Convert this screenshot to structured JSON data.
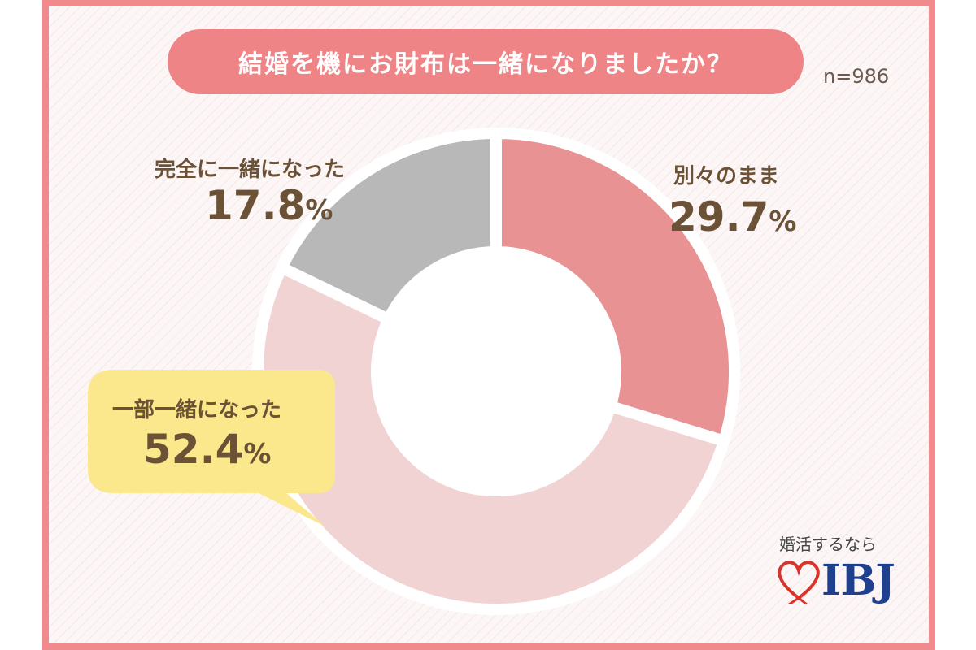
{
  "title": "結婚を機にお財布は一緒になりましたか？",
  "sample_size": "n=986",
  "brand": {
    "tagline": "婚活するなら",
    "name": "IBJ"
  },
  "colors": {
    "separate": "#e89294",
    "partial": "#f2d3d4",
    "full": "#b8b8b8",
    "title_bg": "#ef8487",
    "frame": "#f08a8c",
    "callout": "#fbe88c",
    "label_text": "#6b5237",
    "brand_blue": "#1f3f8f",
    "brand_red": "#d9342b"
  },
  "chart_data": {
    "type": "pie",
    "title": "結婚を機にお財布は一緒になりましたか？",
    "donut": true,
    "unit": "%",
    "slices": [
      {
        "label": "別々のまま",
        "value": 29.7,
        "value_text": "29.7",
        "color": "#e89294"
      },
      {
        "label": "一部一緒になった",
        "value": 52.4,
        "value_text": "52.4",
        "color": "#f2d3d4"
      },
      {
        "label": "完全に一緒になった",
        "value": 17.8,
        "value_text": "17.8",
        "color": "#b8b8b8"
      }
    ]
  }
}
